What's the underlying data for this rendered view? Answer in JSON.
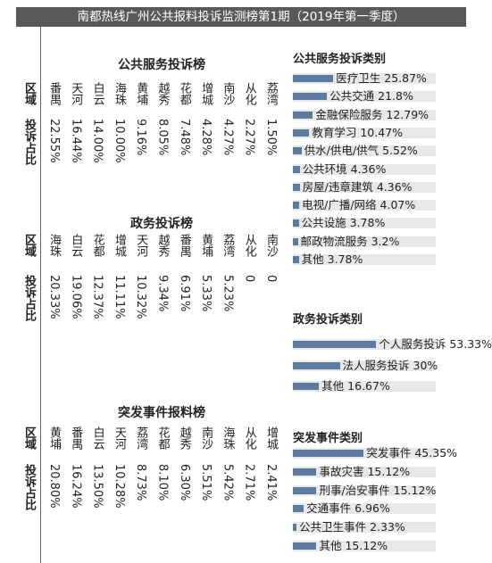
{
  "header": {
    "title": "南都热线广州公共报料投诉监测榜第1期",
    "subtitle": "（2019年第一季度）"
  },
  "tables": [
    {
      "title": "公共服务投诉榜",
      "row_headers": [
        "区域",
        "投诉占比"
      ],
      "columns": [
        "番禺",
        "天河",
        "白云",
        "海珠",
        "黄埔",
        "越秀",
        "花都",
        "增城",
        "南沙",
        "从化",
        "荔湾"
      ],
      "values": [
        "22.55%",
        "16.44%",
        "14.00%",
        "10.00%",
        "9.16%",
        "8.05%",
        "7.48%",
        "4.28%",
        "4.27%",
        "2.27%",
        "1.50%"
      ]
    },
    {
      "title": "政务投诉榜",
      "row_headers": [
        "区域",
        "投诉占比"
      ],
      "columns": [
        "海珠",
        "白云",
        "花都",
        "增城",
        "天河",
        "越秀",
        "番禺",
        "黄埔",
        "荔湾",
        "从化",
        "南沙"
      ],
      "values": [
        "20.33%",
        "19.06%",
        "12.37%",
        "11.11%",
        "10.32%",
        "9.34%",
        "6.91%",
        "5.33%",
        "5.23%",
        "0",
        "0"
      ]
    },
    {
      "title": "突发事件报料榜",
      "row_headers": [
        "区域",
        "投诉占比"
      ],
      "columns": [
        "黄埔",
        "番禺",
        "白云",
        "天河",
        "荔湾",
        "花都",
        "越秀",
        "南沙",
        "海珠",
        "从化",
        "增城"
      ],
      "values": [
        "20.80%",
        "16.24%",
        "13.50%",
        "10.28%",
        "8.73%",
        "8.10%",
        "6.30%",
        "5.51%",
        "5.42%",
        "2.71%",
        "2.41%"
      ]
    }
  ],
  "chart_data": [
    {
      "type": "bar",
      "title": "公共服务投诉类别",
      "color": "#5d7b9e",
      "categories": [
        "医疗卫生",
        "公共交通",
        "金融保险服务",
        "教育学习",
        "供水/供电/供气",
        "公共环境",
        "房屋/违章建筑",
        "电视/广播/网络",
        "公共设施",
        "邮政物流服务",
        "其他"
      ],
      "values": [
        25.87,
        21.8,
        12.79,
        10.47,
        5.52,
        4.36,
        4.36,
        4.07,
        3.78,
        3.2,
        3.78
      ],
      "value_labels": [
        "25.87%",
        "21.8%",
        "12.79%",
        "10.47%",
        "5.52%",
        "4.36%",
        "4.36%",
        "4.07%",
        "3.78%",
        "3.2%",
        "3.78%"
      ]
    },
    {
      "type": "bar",
      "title": "政务投诉类别",
      "color": "#5d7b9e",
      "categories": [
        "个人服务投诉",
        "法人服务投诉",
        "其他"
      ],
      "values": [
        53.33,
        30,
        16.67
      ],
      "value_labels": [
        "53.33%",
        "30%",
        "16.67%"
      ]
    },
    {
      "type": "bar",
      "title": "突发事件类别",
      "color": "#5d7b9e",
      "categories": [
        "突发事件",
        "事故灾害",
        "刑事/治安事件",
        "交通事件",
        "公共卫生事件",
        "其他"
      ],
      "values": [
        45.35,
        15.12,
        15.12,
        6.96,
        2.33,
        15.12
      ],
      "value_labels": [
        "45.35%",
        "15.12%",
        "15.12%",
        "6.96%",
        "2.33%",
        "15.12%"
      ]
    }
  ]
}
